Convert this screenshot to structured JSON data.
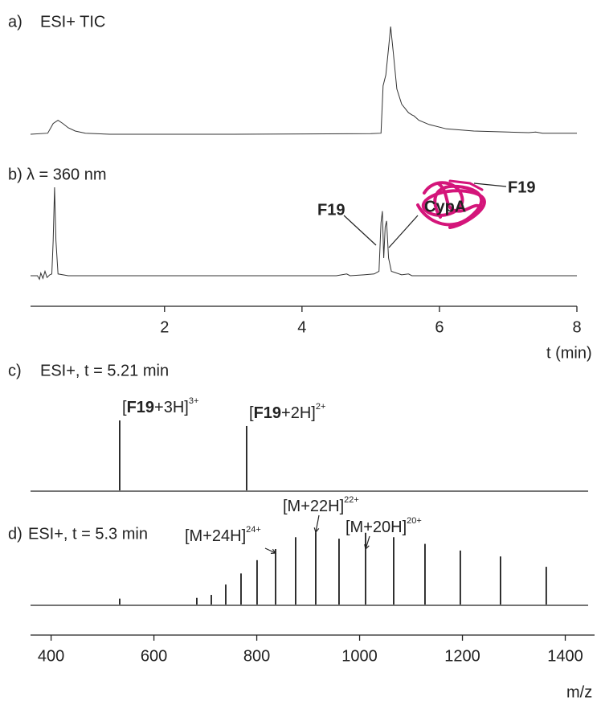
{
  "chart_data": [
    {
      "type": "line",
      "label": "a)",
      "title": "ESI+ TIC",
      "color": "#333333",
      "x": [
        0.05,
        0.3,
        0.38,
        0.45,
        0.52,
        0.6,
        0.7,
        0.85,
        1.2,
        3,
        5.0,
        5.15,
        5.18,
        5.22,
        5.26,
        5.29,
        5.33,
        5.38,
        5.45,
        5.55,
        5.6,
        5.63,
        5.7,
        5.85,
        6.1,
        6.5,
        7.0,
        7.3,
        7.4,
        7.5,
        8.0
      ],
      "values": [
        0,
        1,
        10,
        13,
        10,
        6,
        3,
        1,
        0,
        0,
        0.5,
        1,
        45,
        55,
        80,
        100,
        75,
        42,
        28,
        20,
        18,
        17,
        13,
        9,
        5,
        3,
        2,
        1.5,
        2,
        1,
        1
      ],
      "xlim": [
        0.05,
        8
      ],
      "ylim": [
        0,
        100
      ]
    },
    {
      "type": "line",
      "label": "b)",
      "title": "λ = 360 nm",
      "color": "#333333",
      "x": [
        0.05,
        0.15,
        0.18,
        0.2,
        0.23,
        0.26,
        0.29,
        0.33,
        0.36,
        0.38,
        0.4,
        0.42,
        0.45,
        0.6,
        1,
        4.5,
        4.65,
        4.7,
        4.9,
        5.05,
        5.12,
        5.15,
        5.17,
        5.19,
        5.21,
        5.23,
        5.26,
        5.3,
        5.45,
        5.55,
        5.6,
        6.2,
        8
      ],
      "values": [
        0,
        0,
        -4,
        3,
        -3,
        5,
        -2,
        1,
        2,
        40,
        100,
        40,
        2,
        0,
        0,
        0,
        2,
        0,
        1,
        2,
        5,
        60,
        73,
        20,
        55,
        62,
        20,
        5,
        1,
        2,
        0,
        0,
        0
      ],
      "xlim": [
        0.05,
        8
      ],
      "ylim": [
        0,
        100
      ],
      "xticks": [
        2,
        4,
        6,
        8
      ],
      "xlabel": "t (min)",
      "annotations": [
        {
          "text": "F19"
        },
        {
          "text": "CypA"
        },
        {
          "text": "F19"
        }
      ]
    },
    {
      "type": "stem",
      "label": "c)",
      "title": "ESI+, t = 5.21 min",
      "color": "#000000",
      "x": [
        533.4,
        780.3
      ],
      "values": [
        100,
        92
      ],
      "xlim": [
        360,
        1457
      ],
      "ylim": [
        0,
        100
      ],
      "annotations": [
        {
          "parts": [
            "[",
            "F19",
            "+3H]"
          ],
          "superscript": "3+"
        },
        {
          "parts": [
            "[",
            "F19",
            "+2H]"
          ],
          "superscript": "2+"
        }
      ]
    },
    {
      "type": "stem",
      "label": "d)",
      "title": "ESI+, t = 5.3 min",
      "color": "#000000",
      "x": [
        533.4,
        683.4,
        711.6,
        739.7,
        769.4,
        800.6,
        836.6,
        875.6,
        914.7,
        960.0,
        1011.6,
        1066.3,
        1127.2,
        1195.9,
        1274.0,
        1363.0
      ],
      "values": [
        8,
        9,
        13,
        27,
        42,
        60,
        75,
        91,
        100,
        89,
        97,
        91,
        82,
        73,
        65,
        51
      ],
      "xlim": [
        360,
        1457
      ],
      "ylim": [
        0,
        100
      ],
      "xticks": [
        400,
        600,
        800,
        1000,
        1200,
        1400
      ],
      "xlabel": "m/z",
      "annotations": [
        {
          "parts": [
            "[M+24H]"
          ],
          "superscript": "24+"
        },
        {
          "parts": [
            "[M+22H]"
          ],
          "superscript": "22+"
        },
        {
          "parts": [
            "[M+20H]"
          ],
          "superscript": "20+"
        }
      ]
    }
  ]
}
